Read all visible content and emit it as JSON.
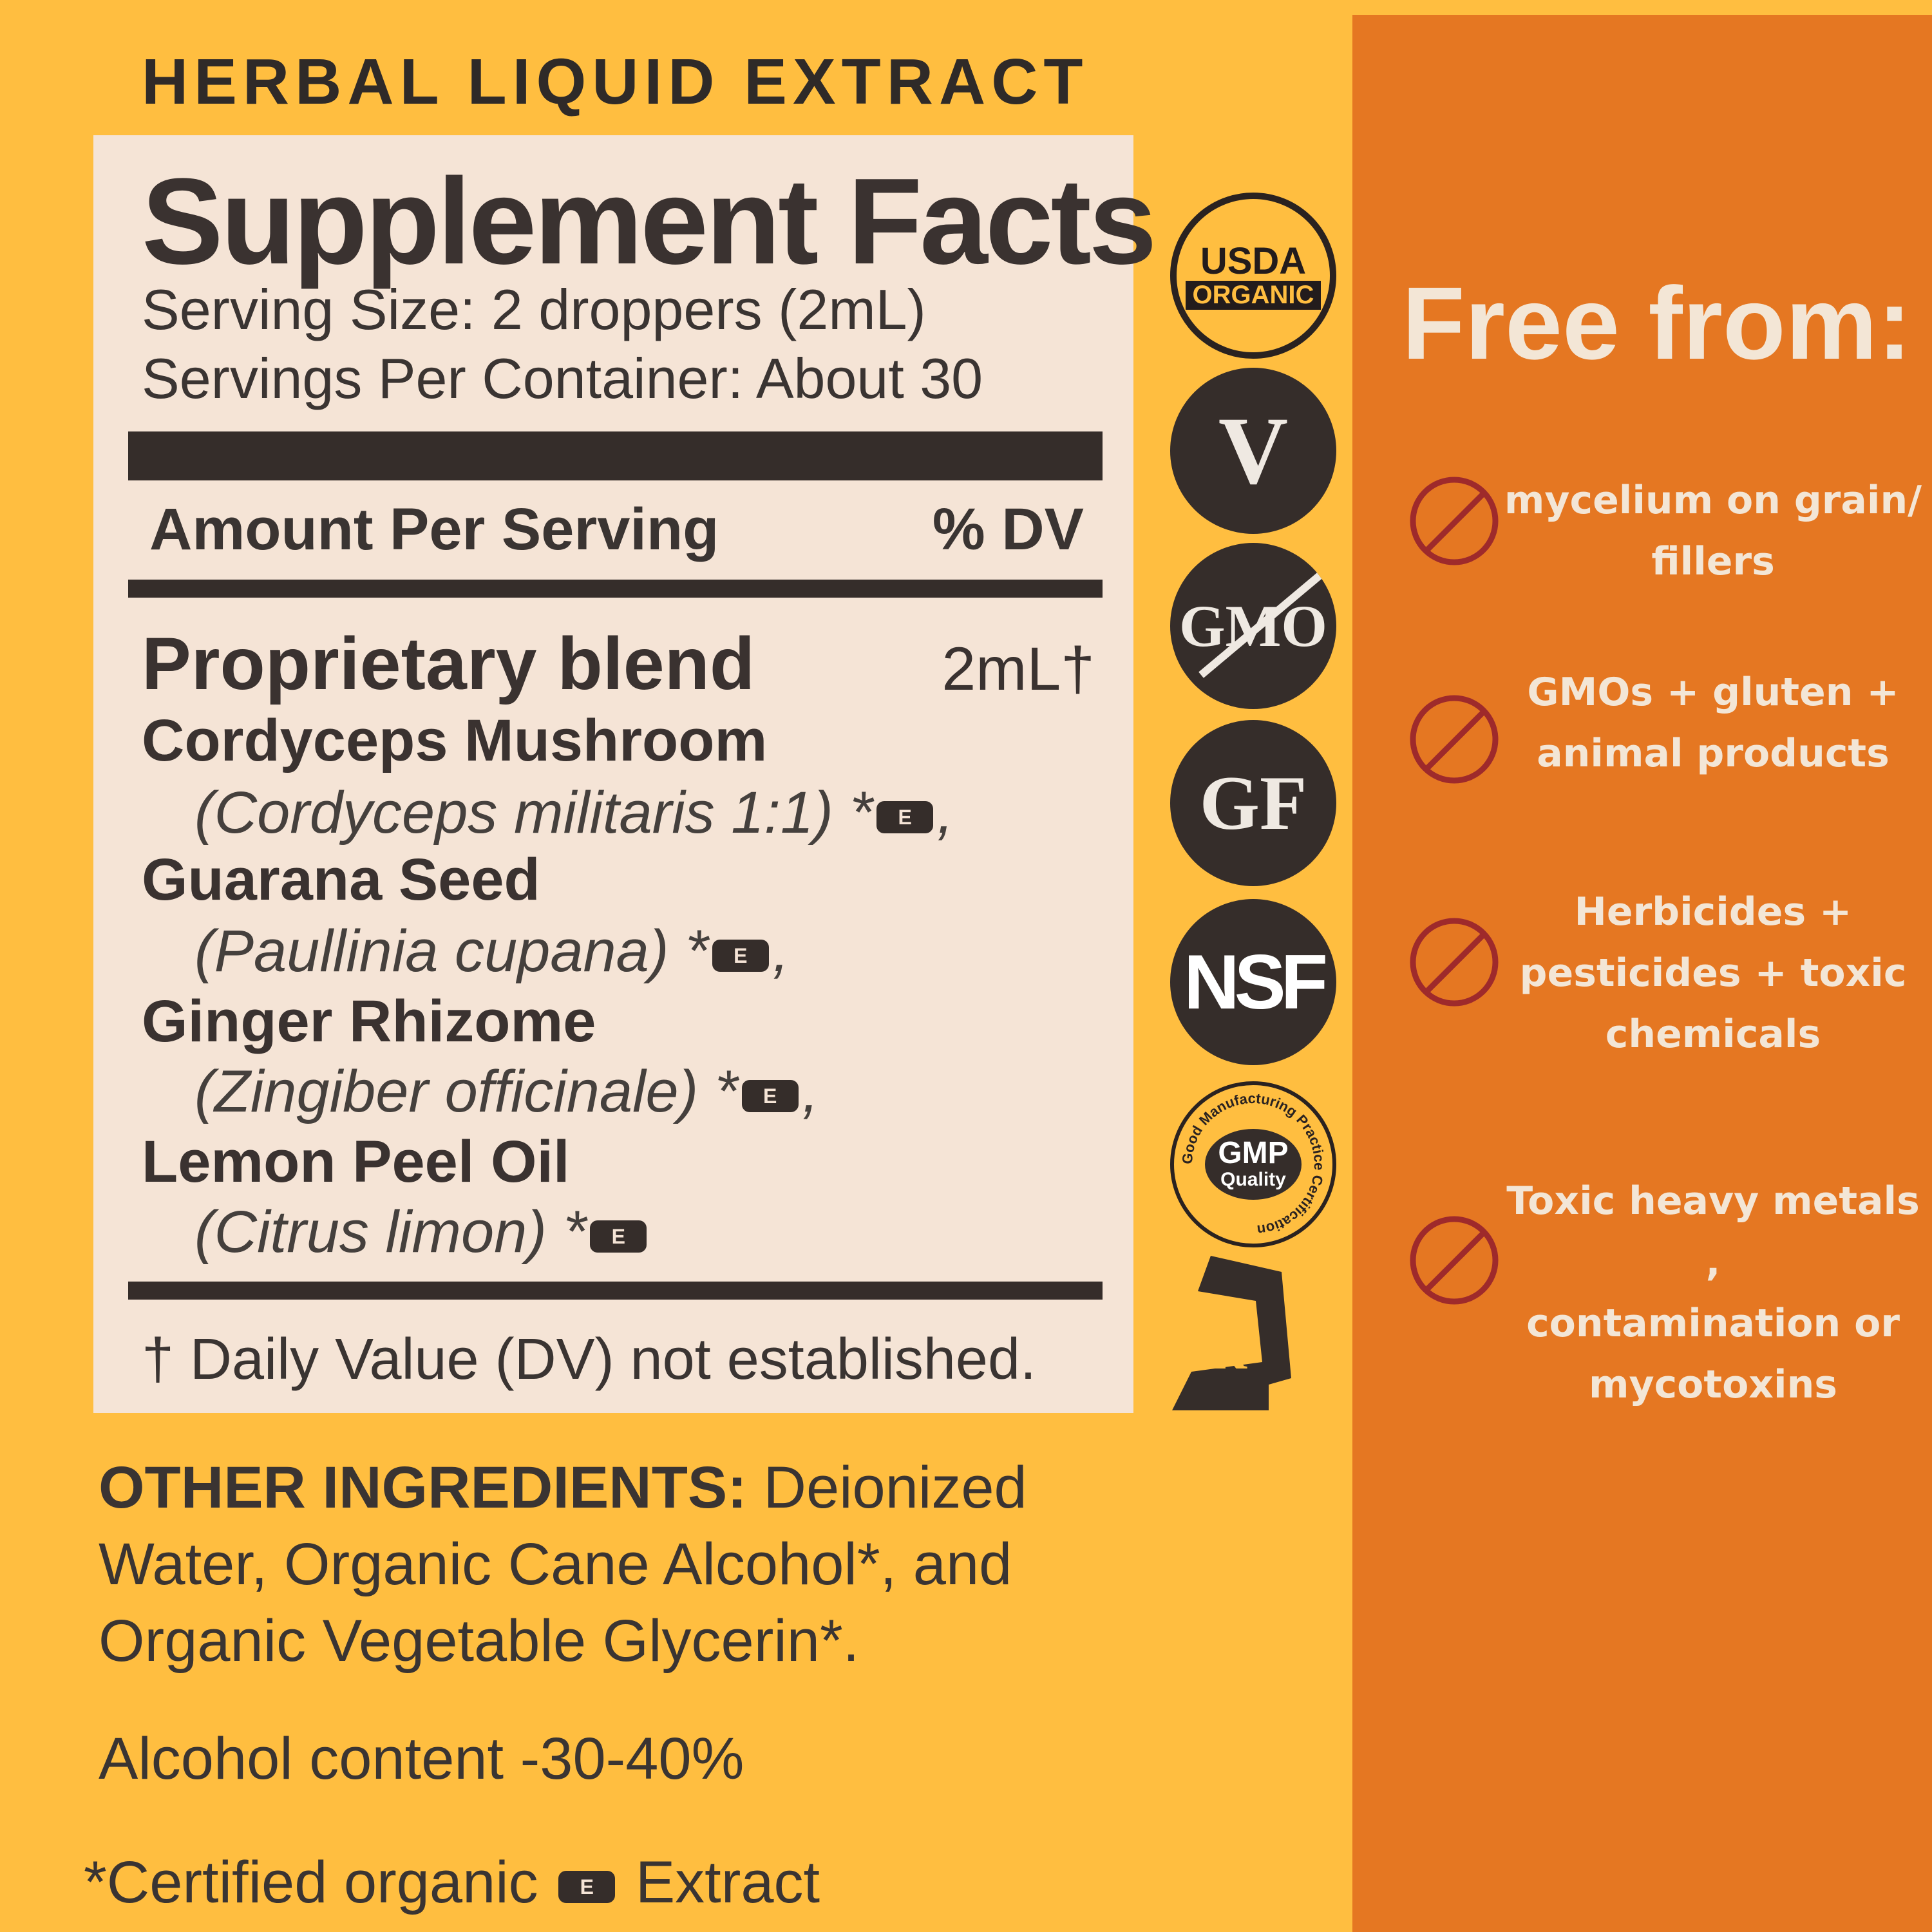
{
  "header": {
    "title": "HERBAL LIQUID EXTRACT"
  },
  "facts": {
    "title": "Supplement Facts",
    "serving_size": "Serving Size: 2 droppers (2mL)",
    "servings_per": "Servings Per Container: About 30",
    "amount_header": "Amount Per Serving",
    "dv_header": "% DV",
    "blend_name": "Proprietary blend",
    "blend_amount": "2mL†",
    "ingredients": [
      {
        "name": "Cordyceps Mushroom",
        "latin": "(Cordyceps militaris 1:1)",
        "mark": "*",
        "sep": ","
      },
      {
        "name": "Guarana Seed",
        "latin": "(Paullinia cupana)",
        "mark": "*",
        "sep": ","
      },
      {
        "name": "Ginger Rhizome",
        "latin": "(Zingiber officinale)",
        "mark": "*",
        "sep": ","
      },
      {
        "name": "Lemon Peel Oil",
        "latin": "(Citrus limon)",
        "mark": "*",
        "sep": ""
      }
    ],
    "e_badge": "E",
    "footnote": "† Daily Value (DV) not established."
  },
  "other": {
    "label": "OTHER INGREDIENTS:",
    "line1": " Deionized",
    "line2": "Water, Organic Cane Alcohol*, and",
    "line3": "Organic Vegetable Glycerin*.",
    "alcohol": "Alcohol content -30-40%",
    "certified": "*Certified organic",
    "extract": "Extract"
  },
  "badges": {
    "usda": "USDA",
    "organic": "ORGANIC",
    "vegan": "V",
    "gmo": "GMO",
    "gf": "GF",
    "nsf": "NSF",
    "gmp": "GMP",
    "quality": "Quality",
    "gmp_ring": "Good Manufacturing Practice Certification",
    "kosher": "K"
  },
  "free_from": {
    "title": "Free from:",
    "items": [
      {
        "lines": [
          "mycelium on grain/",
          "fillers"
        ]
      },
      {
        "lines": [
          "GMOs + gluten +",
          "animal products"
        ]
      },
      {
        "lines": [
          "Herbicides +",
          "pesticides + toxic",
          "chemicals"
        ]
      },
      {
        "lines": [
          "Toxic heavy metals ,",
          "contamination or",
          "mycotoxins"
        ]
      }
    ],
    "icon": "prohibited-icon"
  },
  "colors": {
    "background": "#FFBE40",
    "panel": "#E57722",
    "facts_bg": "#F5E4D6",
    "prohibit": "#9E2A2B",
    "text_light": "#F3E6D6"
  }
}
